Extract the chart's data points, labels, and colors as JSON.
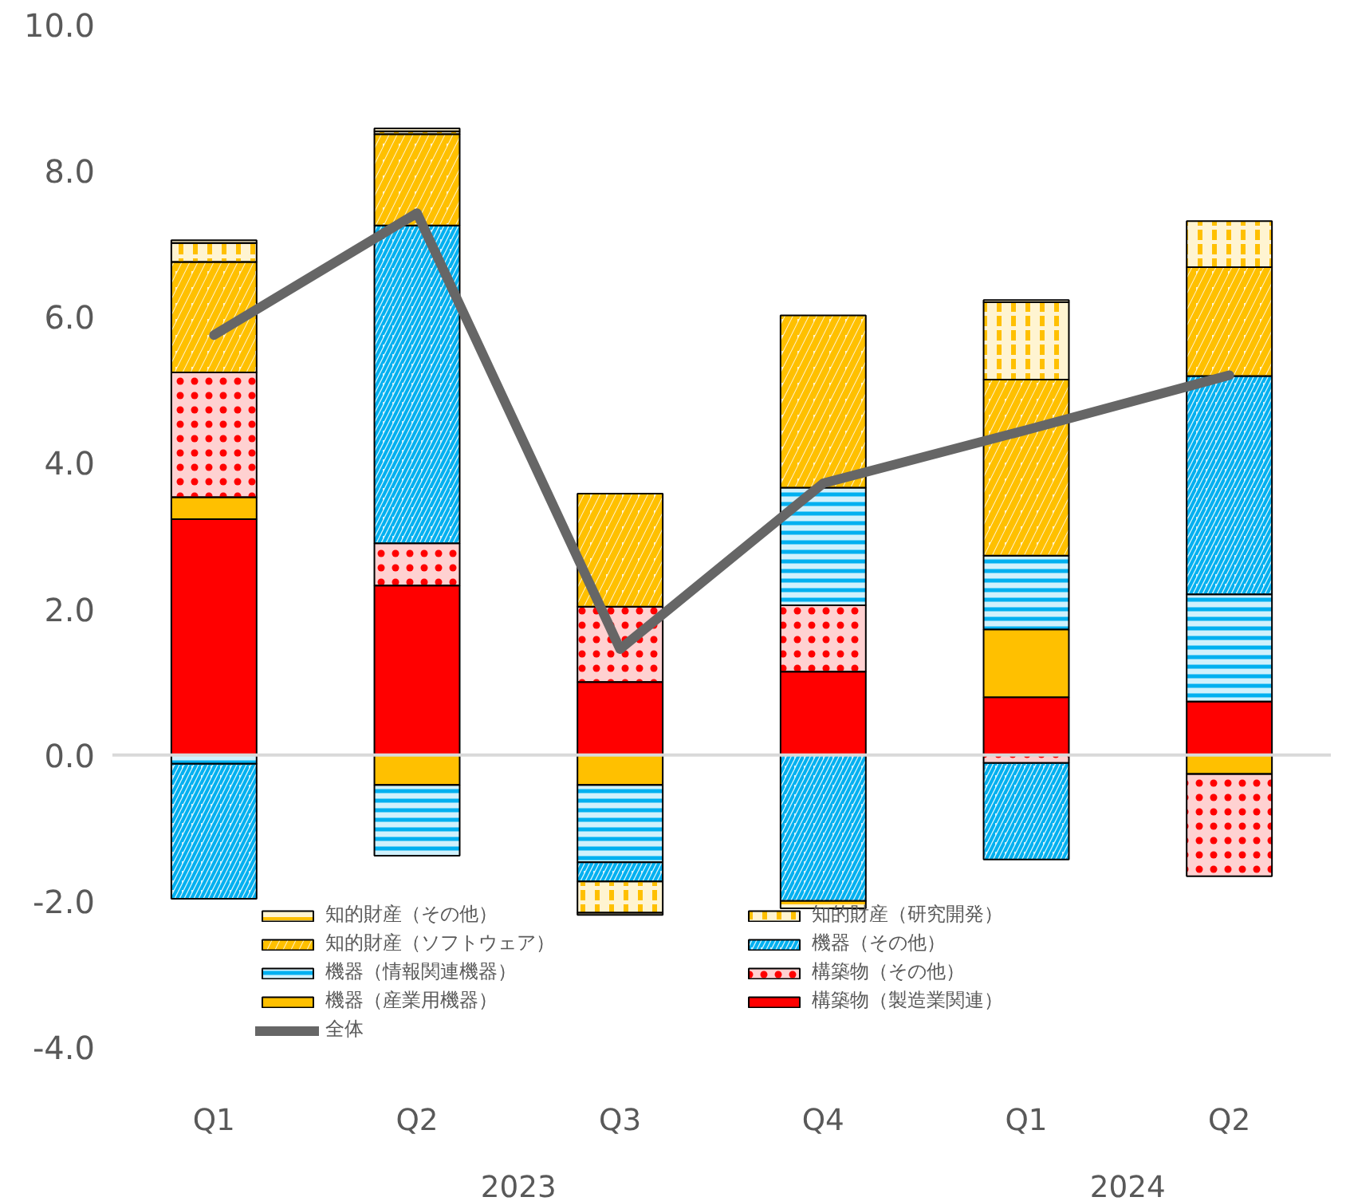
{
  "chart_data": {
    "type": "bar",
    "stacked": true,
    "categories": [
      "Q1",
      "Q2",
      "Q3",
      "Q4",
      "Q1",
      "Q2"
    ],
    "annotations": [
      "2023",
      "2024"
    ],
    "ylim": [
      -4,
      10
    ],
    "yticks": [
      {
        "value": -4,
        "label": "-4.0"
      },
      {
        "value": -2,
        "label": "-2.0"
      },
      {
        "value": 0,
        "label": "0.0"
      },
      {
        "value": 2,
        "label": "2.0"
      },
      {
        "value": 4,
        "label": "4.0"
      },
      {
        "value": 6,
        "label": "6.0"
      },
      {
        "value": 8,
        "label": "8.0"
      },
      {
        "value": 10,
        "label": "10.0"
      }
    ],
    "grid": false,
    "legend": "bottom",
    "ref_lines": [
      {
        "axis": "y",
        "value": 0,
        "color": "#d9d9d9"
      }
    ],
    "series": [
      {
        "name": "構築物（製造業関連）",
        "color": "#ff0000",
        "values": [
          3.23,
          2.32,
          1.0,
          1.14,
          0.79,
          0.73
        ]
      },
      {
        "name": "機器（産業用機器）",
        "color": "#ffc000",
        "values": [
          0.3,
          -0.41,
          -0.41,
          null,
          0.93,
          -0.26
        ]
      },
      {
        "name": "構築物（その他）",
        "color": "#ff0000",
        "values": [
          1.71,
          0.58,
          1.03,
          0.91,
          -0.11,
          -1.4
        ]
      },
      {
        "name": "機器（情報関連機器）",
        "color": "#00b0f0",
        "values": [
          -0.12,
          -0.97,
          -1.06,
          1.61,
          1.01,
          1.47
        ]
      },
      {
        "name": "機器（その他）",
        "color": "#00b0f0",
        "values": [
          -1.85,
          4.35,
          -0.26,
          -2.0,
          -1.32,
          2.99
        ]
      },
      {
        "name": "知的財産（ソフトウェア）",
        "color": "#ffc000",
        "values": [
          1.51,
          1.25,
          1.55,
          2.36,
          2.41,
          1.49
        ]
      },
      {
        "name": "知的財産（研究開発）",
        "color": "#ffc000",
        "values": [
          0.26,
          0.04,
          -0.43,
          null,
          1.06,
          0.63
        ]
      },
      {
        "name": "知的財産（その他）",
        "color": "#ffc000",
        "values": [
          0.04,
          0.04,
          -0.03,
          -0.1,
          0.03,
          null
        ]
      },
      {
        "name": "全体",
        "type": "line",
        "color": "#666666",
        "values": [
          5.75,
          7.42,
          1.45,
          3.72,
          4.45,
          5.2
        ]
      }
    ]
  }
}
